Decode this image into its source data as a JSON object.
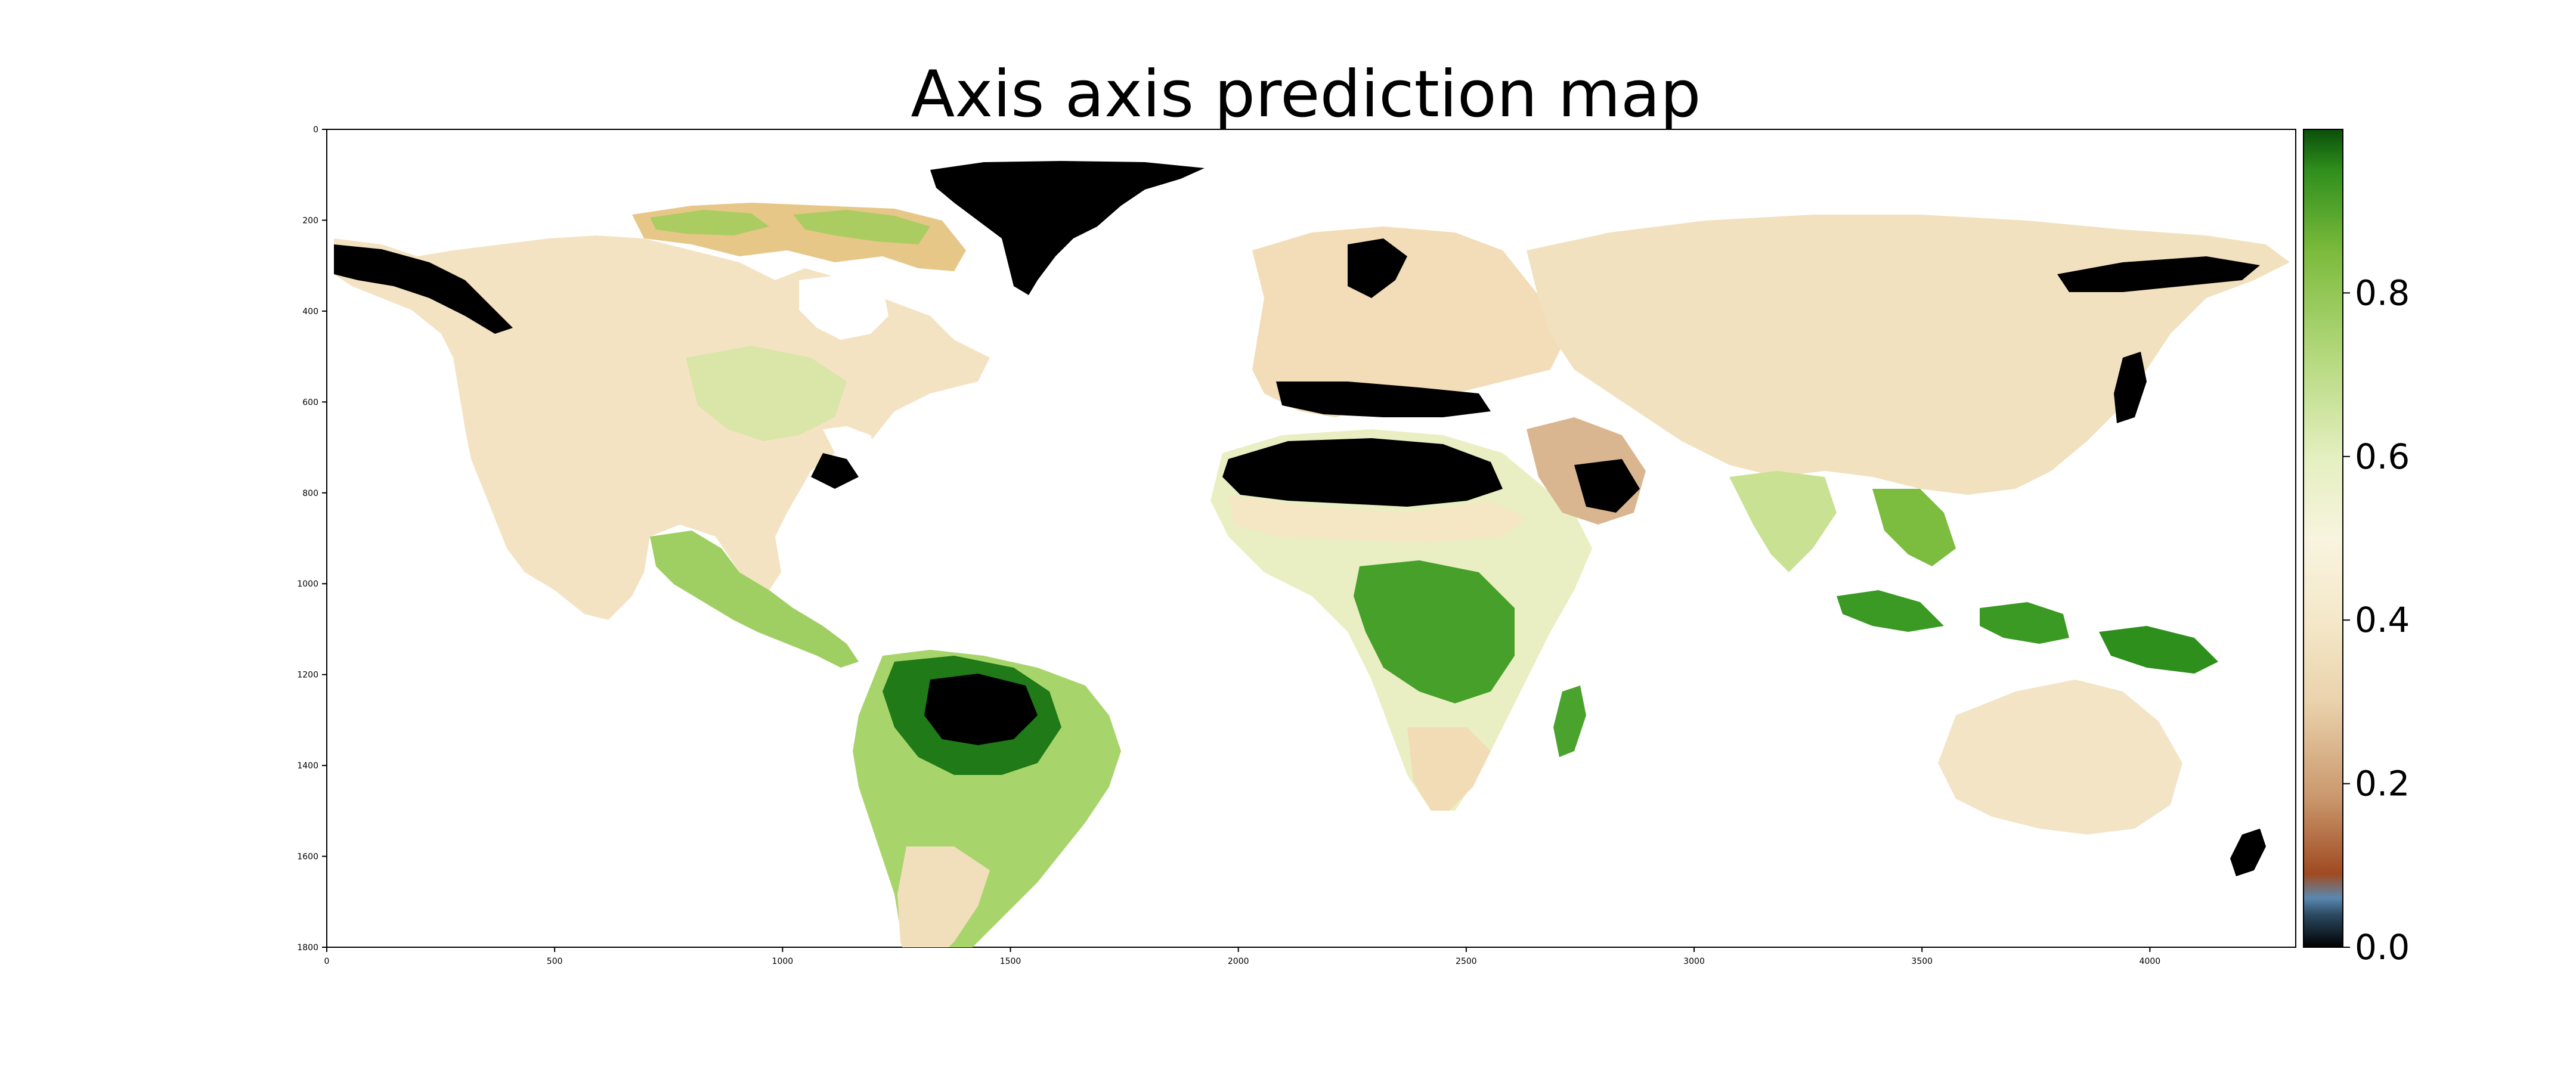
{
  "title": "Axis axis prediction map",
  "map": {
    "x_ticks": [
      "0",
      "500",
      "1000",
      "1500",
      "2000",
      "2500",
      "3000",
      "3500",
      "4000"
    ],
    "y_ticks": [
      "0",
      "200",
      "400",
      "600",
      "800",
      "1000",
      "1200",
      "1400",
      "1600",
      "1800"
    ],
    "x_range": [
      0,
      4320
    ],
    "y_range": [
      0,
      1800
    ],
    "land_color_low": "#f5e6c8",
    "forest_color": "#2e8b1e",
    "dense_forest_color": "#0b5a0b",
    "nodata_color": "#000000"
  },
  "colorbar": {
    "ticks": [
      "0.0",
      "0.2",
      "0.4",
      "0.6",
      "0.8"
    ],
    "tick_values": [
      0.0,
      0.2,
      0.4,
      0.6,
      0.8
    ],
    "range": [
      0.0,
      1.0
    ],
    "stops": [
      {
        "v": 0.0,
        "c": "#000000"
      },
      {
        "v": 0.04,
        "c": "#2c4a63"
      },
      {
        "v": 0.06,
        "c": "#5a88b0"
      },
      {
        "v": 0.09,
        "c": "#a04a20"
      },
      {
        "v": 0.18,
        "c": "#c9966b"
      },
      {
        "v": 0.3,
        "c": "#ead2ac"
      },
      {
        "v": 0.4,
        "c": "#f5e8c9"
      },
      {
        "v": 0.5,
        "c": "#f8f4df"
      },
      {
        "v": 0.6,
        "c": "#e4efbf"
      },
      {
        "v": 0.72,
        "c": "#b5d97e"
      },
      {
        "v": 0.85,
        "c": "#7cbb3c"
      },
      {
        "v": 0.95,
        "c": "#2f8f1c"
      },
      {
        "v": 1.0,
        "c": "#0a4f0a"
      }
    ]
  }
}
